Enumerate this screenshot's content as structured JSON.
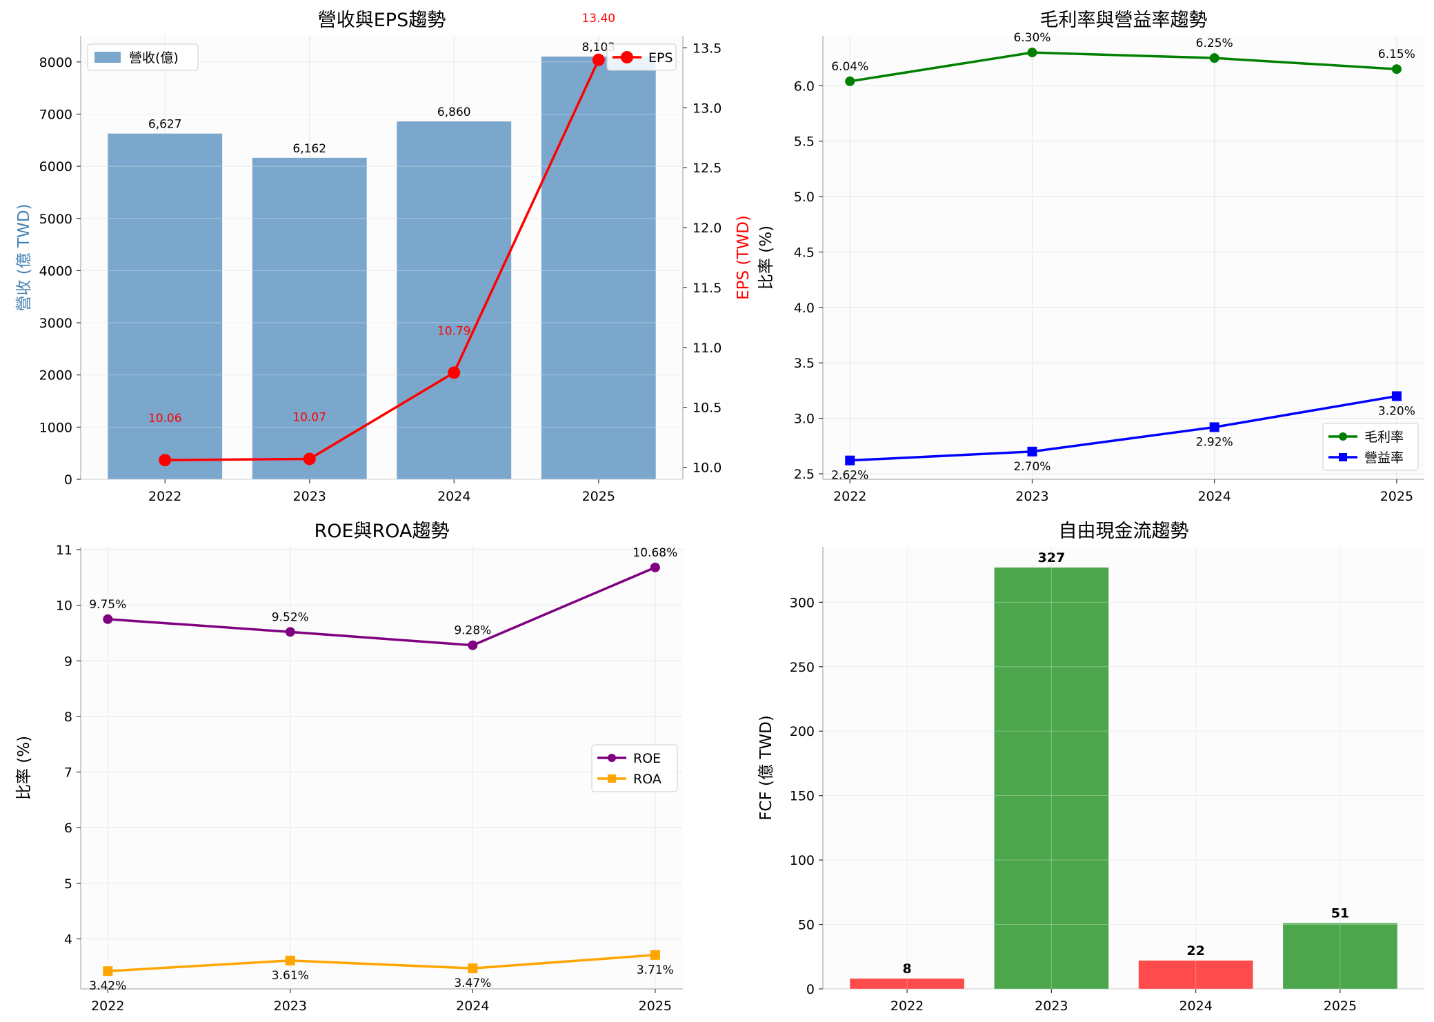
{
  "chart_data": [
    {
      "type": "bar",
      "title": "營收與EPS趨勢",
      "xlabel": "",
      "ylabel": "營收 (億 TWD)",
      "y2label": "EPS (TWD)",
      "categories": [
        "2022",
        "2023",
        "2024",
        "2025"
      ],
      "ylim": [
        0,
        8500
      ],
      "y2lim": [
        9.9,
        13.6
      ],
      "yticks": [
        "0",
        "1000",
        "2000",
        "3000",
        "4000",
        "5000",
        "6000",
        "7000",
        "8000"
      ],
      "y2ticks": [
        "10.0",
        "10.5",
        "11.0",
        "11.5",
        "12.0",
        "12.5",
        "13.0",
        "13.5"
      ],
      "grid": true,
      "legend_placement": "top-left / top-right",
      "series": [
        {
          "name": "營收(億)",
          "type": "bar",
          "axis": "left",
          "values": [
            6627,
            6162,
            6860,
            8103
          ],
          "labels": [
            "6,627",
            "6,162",
            "6,860",
            "8,103"
          ],
          "color": "#7ba7cc"
        },
        {
          "name": "EPS",
          "type": "line",
          "axis": "right",
          "values": [
            10.06,
            10.07,
            10.79,
            13.4
          ],
          "labels": [
            "10.06",
            "10.07",
            "10.79",
            "13.40"
          ],
          "color": "#ff0000"
        }
      ]
    },
    {
      "type": "line",
      "title": "毛利率與營益率趨勢",
      "xlabel": "",
      "ylabel": "比率 (%)",
      "categories": [
        "2022",
        "2023",
        "2024",
        "2025"
      ],
      "ylim": [
        2.45,
        6.45
      ],
      "yticks": [
        "2.5",
        "3.0",
        "3.5",
        "4.0",
        "4.5",
        "5.0",
        "5.5",
        "6.0"
      ],
      "grid": true,
      "legend_placement": "lower-right",
      "series": [
        {
          "name": "毛利率",
          "values": [
            6.04,
            6.3,
            6.25,
            6.15
          ],
          "labels": [
            "6.04%",
            "6.30%",
            "6.25%",
            "6.15%"
          ],
          "color": "#008000",
          "marker": "circle"
        },
        {
          "name": "營益率",
          "values": [
            2.62,
            2.7,
            2.92,
            3.2
          ],
          "labels": [
            "2.62%",
            "2.70%",
            "2.92%",
            "3.20%"
          ],
          "color": "#0000ff",
          "marker": "square"
        }
      ]
    },
    {
      "type": "line",
      "title": "ROE與ROA趨勢",
      "xlabel": "",
      "ylabel": "比率 (%)",
      "categories": [
        "2022",
        "2023",
        "2024",
        "2025"
      ],
      "ylim": [
        3.1,
        11.05
      ],
      "yticks": [
        "4",
        "5",
        "6",
        "7",
        "8",
        "9",
        "10",
        "11"
      ],
      "grid": true,
      "legend_placement": "center-right",
      "series": [
        {
          "name": "ROE",
          "values": [
            9.75,
            9.52,
            9.28,
            10.68
          ],
          "labels": [
            "9.75%",
            "9.52%",
            "9.28%",
            "10.68%"
          ],
          "color": "#800080",
          "marker": "circle"
        },
        {
          "name": "ROA",
          "values": [
            3.42,
            3.61,
            3.47,
            3.71
          ],
          "labels": [
            "3.42%",
            "3.61%",
            "3.47%",
            "3.71%"
          ],
          "color": "#ffa500",
          "marker": "square"
        }
      ]
    },
    {
      "type": "bar",
      "title": "自由現金流趨勢",
      "xlabel": "",
      "ylabel": "FCF (億 TWD)",
      "categories": [
        "2022",
        "2023",
        "2024",
        "2025"
      ],
      "ylim": [
        0,
        343
      ],
      "yticks": [
        "0",
        "50",
        "100",
        "150",
        "200",
        "250",
        "300"
      ],
      "grid": true,
      "series": [
        {
          "name": "",
          "values": [
            8,
            327,
            22,
            51
          ],
          "labels": [
            "8",
            "327",
            "22",
            "51"
          ],
          "colors": [
            "#ff4b4b",
            "#4ca64c",
            "#ff4b4b",
            "#4ca64c"
          ]
        }
      ]
    }
  ]
}
